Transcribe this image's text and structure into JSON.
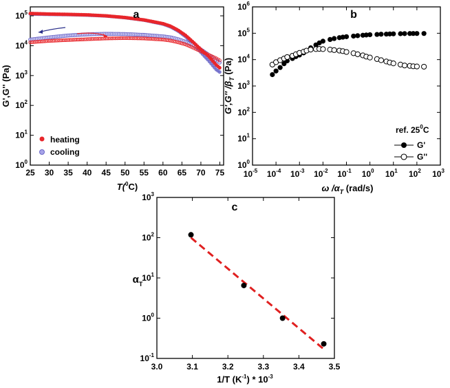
{
  "chart_data": [
    {
      "panel": "a",
      "type": "scatter",
      "xlabel_prefix": "T(",
      "xlabel_sup": "0",
      "xlabel_suffix": "C)",
      "ylabel": "G',G'' (Pa)",
      "xlim": [
        25,
        76
      ],
      "ylim_log10": [
        0,
        5.3
      ],
      "xticks": [
        "25",
        "30",
        "35",
        "40",
        "45",
        "50",
        "55",
        "60",
        "65",
        "70",
        "75"
      ],
      "yticks": [
        {
          "base": "10",
          "exp": "0"
        },
        {
          "base": "10",
          "exp": "1"
        },
        {
          "base": "10",
          "exp": "2"
        },
        {
          "base": "10",
          "exp": "3"
        },
        {
          "base": "10",
          "exp": "4"
        },
        {
          "base": "10",
          "exp": "5"
        }
      ],
      "series": [
        {
          "name": "heating",
          "color": "#e8262b",
          "x": [
            25,
            30,
            35,
            40,
            45,
            50,
            55,
            60,
            62,
            64,
            66,
            68,
            70,
            72,
            74,
            75
          ],
          "G1": [
            120000,
            115000,
            112000,
            108000,
            100000,
            88000,
            73000,
            55000,
            45000,
            33000,
            22000,
            13000,
            7500,
            4500,
            2300,
            1800
          ],
          "G2": [
            13000,
            14500,
            15500,
            16500,
            17500,
            18000,
            17500,
            16000,
            14800,
            13000,
            11000,
            8500,
            6500,
            5000,
            3800,
            3200
          ]
        },
        {
          "name": "cooling",
          "color": "#6b67c8",
          "x": [
            25,
            30,
            35,
            40,
            45,
            50,
            55,
            60,
            62,
            64,
            66,
            68,
            70,
            72,
            74,
            75
          ],
          "G1": [
            115000,
            112000,
            110000,
            106000,
            99000,
            87000,
            72000,
            53000,
            43000,
            31000,
            20000,
            11000,
            6000,
            3200,
            1600,
            1300
          ],
          "G2": [
            16000,
            19000,
            22000,
            24000,
            25000,
            24500,
            23000,
            20500,
            19000,
            16500,
            13500,
            10500,
            7500,
            5000,
            3300,
            2700
          ]
        }
      ],
      "legend": [
        {
          "label": "heating"
        },
        {
          "label": "cooling"
        }
      ]
    },
    {
      "panel": "b",
      "type": "scatter",
      "xlabel_main": "ω /α",
      "xlabel_sub": "T",
      "xlabel_suffix": " (rad/s)",
      "ylabel_main": "G',G'' /β",
      "ylabel_sub": "T",
      "ylabel_suffix": " (Pa)",
      "xlim_log10": [
        -5,
        3
      ],
      "ylim_log10": [
        0,
        6
      ],
      "xticks": [
        {
          "base": "10",
          "exp": "-5"
        },
        {
          "base": "10",
          "exp": "-4"
        },
        {
          "base": "10",
          "exp": "-3"
        },
        {
          "base": "10",
          "exp": "-2"
        },
        {
          "base": "10",
          "exp": "-1"
        },
        {
          "base": "10",
          "exp": "0"
        },
        {
          "base": "10",
          "exp": "1"
        },
        {
          "base": "10",
          "exp": "2"
        },
        {
          "base": "10",
          "exp": "3"
        }
      ],
      "yticks": [
        {
          "base": "10",
          "exp": "0"
        },
        {
          "base": "10",
          "exp": "1"
        },
        {
          "base": "10",
          "exp": "2"
        },
        {
          "base": "10",
          "exp": "3"
        },
        {
          "base": "10",
          "exp": "4"
        },
        {
          "base": "10",
          "exp": "5"
        },
        {
          "base": "10",
          "exp": "6"
        }
      ],
      "series": [
        {
          "name": "G'",
          "fill": "filled",
          "x": [
            7e-05,
            0.0001,
            0.00015,
            0.00022,
            0.0003,
            0.0005,
            0.0007,
            0.001,
            0.0015,
            0.002,
            0.003,
            0.005,
            0.007,
            0.01,
            0.02,
            0.03,
            0.05,
            0.07,
            0.1,
            0.2,
            0.3,
            0.5,
            0.7,
            1,
            2,
            3,
            5,
            7,
            10,
            20,
            30,
            50,
            70,
            100,
            200
          ],
          "y": [
            2700,
            3700,
            5000,
            7000,
            9000,
            11000,
            13000,
            15000,
            18000,
            22000,
            28000,
            36000,
            43000,
            50000,
            58000,
            63000,
            68000,
            71000,
            74000,
            78000,
            81000,
            84000,
            86000,
            88000,
            90000,
            92000,
            93000,
            94000,
            95000,
            96000,
            97000,
            97500,
            98000,
            98000,
            98000
          ]
        },
        {
          "name": "G''",
          "fill": "open",
          "x": [
            7e-05,
            0.0001,
            0.00015,
            0.00022,
            0.0003,
            0.0005,
            0.0007,
            0.001,
            0.0015,
            0.002,
            0.003,
            0.005,
            0.007,
            0.01,
            0.02,
            0.03,
            0.05,
            0.07,
            0.1,
            0.2,
            0.3,
            0.5,
            0.7,
            1,
            2,
            3,
            5,
            7,
            10,
            20,
            30,
            50,
            70,
            100,
            200
          ],
          "y": [
            6500,
            8000,
            9500,
            11000,
            12500,
            14000,
            16000,
            18000,
            20000,
            22000,
            24000,
            25000,
            25500,
            25000,
            24000,
            23000,
            22000,
            21000,
            19500,
            17500,
            16000,
            14500,
            13000,
            12000,
            10500,
            9500,
            8500,
            7800,
            7200,
            6500,
            6000,
            5800,
            5600,
            5500,
            5400
          ]
        }
      ],
      "legend_title_prefix": "ref. 25",
      "legend_title_sup": "0",
      "legend_title_suffix": "C",
      "legend": [
        {
          "label": "G'"
        },
        {
          "label": "G''"
        }
      ]
    },
    {
      "panel": "c",
      "type": "scatter",
      "xlabel_prefix": "1/T (K",
      "xlabel_sup1": "-1",
      "xlabel_mid": ") * 10",
      "xlabel_sup2": "-3",
      "ylabel_main": "α",
      "ylabel_sub": "T",
      "xlim": [
        3.0,
        3.5
      ],
      "ylim_log10": [
        -1,
        3
      ],
      "xticks": [
        "3.0",
        "3.1",
        "3.2",
        "3.3",
        "3.4",
        "3.5"
      ],
      "yticks": [
        {
          "base": "10",
          "exp": "-1"
        },
        {
          "base": "10",
          "exp": "0"
        },
        {
          "base": "10",
          "exp": "1"
        },
        {
          "base": "10",
          "exp": "2"
        },
        {
          "base": "10",
          "exp": "3"
        }
      ],
      "points": {
        "x": [
          3.096,
          3.245,
          3.354,
          3.47
        ],
        "y": [
          118,
          6.5,
          1.0,
          0.23
        ]
      },
      "fit": {
        "x": [
          3.096,
          3.47
        ],
        "y": [
          100,
          0.17
        ],
        "color": "#e02020"
      }
    }
  ]
}
